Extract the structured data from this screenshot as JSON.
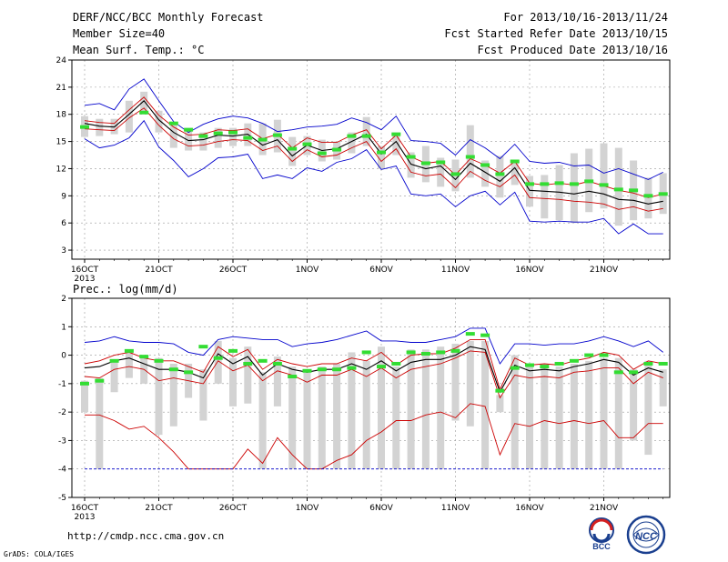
{
  "header": {
    "title": "DERF/NCC/BCC Monthly Forecast",
    "member_size": "Member Size=40",
    "variable": "Mean Surf. Temp.: °C",
    "for_period": "For 2013/10/16-2013/11/24",
    "fcst_started": "Fcst Started Refer Date 2013/10/15",
    "fcst_produced": "Fcst Produced Date 2013/10/16"
  },
  "footer": {
    "url": "http://cmdp.ncc.cma.gov.cn",
    "credit": "GrADS: COLA/IGES",
    "logo_left_text": "BCC",
    "logo_right_text": "NCC"
  },
  "colors": {
    "envelope": "#0000cc",
    "spread": "#cc0000",
    "mean": "#000000",
    "box": "#d3d3d3",
    "obs": "#33dd33",
    "floor": "#0000cc"
  },
  "chart_data": [
    {
      "type": "line",
      "ylabel": "Mean Surf. Temp.: °C",
      "ylim": [
        2,
        24
      ],
      "yticks": [
        3,
        6,
        9,
        12,
        15,
        18,
        21,
        24
      ],
      "x": [
        "16OCT",
        "17OCT",
        "18OCT",
        "19OCT",
        "20OCT",
        "21OCT",
        "22OCT",
        "23OCT",
        "24OCT",
        "25OCT",
        "26OCT",
        "27OCT",
        "28OCT",
        "29OCT",
        "30OCT",
        "31OCT",
        "1NOV",
        "2NOV",
        "3NOV",
        "4NOV",
        "5NOV",
        "6NOV",
        "7NOV",
        "8NOV",
        "9NOV",
        "10NOV",
        "11NOV",
        "12NOV",
        "13NOV",
        "14NOV",
        "15NOV",
        "16NOV",
        "17NOV",
        "18NOV",
        "19NOV",
        "20NOV",
        "21NOV",
        "22NOV",
        "23NOV",
        "24NOV"
      ],
      "xtick_labels": [
        "16OCT",
        "21OCT",
        "26OCT",
        "1NOV",
        "6NOV",
        "11NOV",
        "16NOV",
        "21NOV"
      ],
      "xtick_sublabel": "2013",
      "series": [
        {
          "role": "max",
          "values": [
            19.0,
            19.2,
            18.5,
            20.8,
            21.9,
            19.5,
            17.2,
            16.0,
            16.9,
            17.5,
            17.8,
            17.6,
            17.0,
            16.1,
            16.3,
            16.6,
            16.7,
            16.9,
            17.6,
            17.1,
            16.3,
            17.8,
            15.1,
            15.0,
            14.8,
            13.5,
            15.2,
            14.3,
            13.1,
            14.7,
            12.8,
            12.6,
            12.7,
            12.3,
            12.4,
            11.5,
            12.0,
            11.4,
            10.8,
            11.6
          ]
        },
        {
          "role": "upper",
          "values": [
            17.3,
            17.1,
            17.0,
            18.5,
            19.9,
            17.9,
            16.6,
            15.7,
            15.8,
            16.3,
            16.2,
            16.4,
            15.3,
            15.8,
            14.3,
            15.4,
            14.9,
            14.9,
            15.7,
            16.3,
            14.2,
            15.7,
            13.3,
            12.6,
            12.8,
            11.3,
            13.1,
            12.4,
            11.5,
            12.8,
            10.4,
            10.2,
            10.4,
            10.2,
            10.6,
            10.1,
            9.6,
            9.3,
            8.8,
            9.2
          ]
        },
        {
          "role": "mean",
          "values": [
            17.0,
            16.7,
            16.6,
            18.0,
            19.5,
            17.4,
            16.0,
            15.1,
            15.2,
            15.7,
            15.6,
            15.8,
            14.6,
            15.2,
            13.4,
            14.6,
            14.0,
            14.2,
            15.0,
            15.8,
            13.6,
            15.0,
            12.5,
            12.0,
            12.3,
            10.8,
            12.6,
            11.6,
            10.6,
            12.1,
            9.6,
            9.5,
            9.4,
            9.2,
            9.5,
            9.2,
            8.6,
            8.5,
            8.1,
            8.4
          ]
        },
        {
          "role": "lower",
          "values": [
            16.4,
            16.3,
            16.2,
            17.6,
            18.7,
            16.8,
            15.3,
            14.5,
            14.6,
            15.0,
            15.2,
            15.1,
            14.0,
            14.5,
            12.8,
            14.1,
            13.3,
            13.5,
            14.3,
            15.0,
            12.8,
            14.2,
            11.6,
            11.2,
            11.4,
            9.9,
            11.7,
            10.7,
            10.0,
            11.3,
            8.8,
            8.7,
            8.6,
            8.4,
            8.3,
            8.1,
            7.5,
            7.8,
            7.3,
            7.6
          ]
        },
        {
          "role": "min",
          "values": [
            15.3,
            14.3,
            14.6,
            15.4,
            17.3,
            14.4,
            12.9,
            11.1,
            12.0,
            13.2,
            13.3,
            13.6,
            10.9,
            11.3,
            10.9,
            12.1,
            11.7,
            12.7,
            13.1,
            14.1,
            11.9,
            12.3,
            9.2,
            9.0,
            9.2,
            7.8,
            9.0,
            9.5,
            8.0,
            9.4,
            6.2,
            6.1,
            6.2,
            6.1,
            6.1,
            6.5,
            4.8,
            5.9,
            4.8,
            4.8
          ]
        }
      ],
      "boxes": [
        [
          15.5,
          17.8
        ],
        [
          15.6,
          17.5
        ],
        [
          15.8,
          17.5
        ],
        [
          16.0,
          19.5
        ],
        [
          18.0,
          20.5
        ],
        [
          16.0,
          18.4
        ],
        [
          14.3,
          17.0
        ],
        [
          14.0,
          16.5
        ],
        [
          14.0,
          16.0
        ],
        [
          14.3,
          16.5
        ],
        [
          14.5,
          16.5
        ],
        [
          14.5,
          17.0
        ],
        [
          13.5,
          17.0
        ],
        [
          13.8,
          17.4
        ],
        [
          12.3,
          15.5
        ],
        [
          13.5,
          15.6
        ],
        [
          12.8,
          15.2
        ],
        [
          13.0,
          15.0
        ],
        [
          13.7,
          16.0
        ],
        [
          14.5,
          17.7
        ],
        [
          12.0,
          14.5
        ],
        [
          13.5,
          16.0
        ],
        [
          11.0,
          13.8
        ],
        [
          10.5,
          14.5
        ],
        [
          10.0,
          13.2
        ],
        [
          9.5,
          13.0
        ],
        [
          11.0,
          16.8
        ],
        [
          10.0,
          12.9
        ],
        [
          8.8,
          13.4
        ],
        [
          10.2,
          12.6
        ],
        [
          7.8,
          11.2
        ],
        [
          6.5,
          11.3
        ],
        [
          6.3,
          12.4
        ],
        [
          6.0,
          13.7
        ],
        [
          7.2,
          14.2
        ],
        [
          7.6,
          14.8
        ],
        [
          5.7,
          14.3
        ],
        [
          6.3,
          12.9
        ],
        [
          6.5,
          11.0
        ],
        [
          7.0,
          11.5
        ]
      ],
      "obs": [
        16.6,
        null,
        null,
        null,
        18.2,
        null,
        17.0,
        16.3,
        15.6,
        15.9,
        16.0,
        15.4,
        15.2,
        15.7,
        14.2,
        14.7,
        13.7,
        14.1,
        15.6,
        15.6,
        13.8,
        15.8,
        13.3,
        12.6,
        12.7,
        11.4,
        13.3,
        12.4,
        11.4,
        12.8,
        10.3,
        10.3,
        10.4,
        10.3,
        10.6,
        10.2,
        9.7,
        9.6,
        9.0,
        9.2
      ]
    },
    {
      "type": "line",
      "ylabel": "Prec.: log(mm/d)",
      "ylim": [
        -5,
        2
      ],
      "yticks": [
        -5,
        -4,
        -3,
        -2,
        -1,
        0,
        1,
        2
      ],
      "x": [
        "16OCT",
        "17OCT",
        "18OCT",
        "19OCT",
        "20OCT",
        "21OCT",
        "22OCT",
        "23OCT",
        "24OCT",
        "25OCT",
        "26OCT",
        "27OCT",
        "28OCT",
        "29OCT",
        "30OCT",
        "31OCT",
        "1NOV",
        "2NOV",
        "3NOV",
        "4NOV",
        "5NOV",
        "6NOV",
        "7NOV",
        "8NOV",
        "9NOV",
        "10NOV",
        "11NOV",
        "12NOV",
        "13NOV",
        "14NOV",
        "15NOV",
        "16NOV",
        "17NOV",
        "18NOV",
        "19NOV",
        "20NOV",
        "21NOV",
        "22NOV",
        "23NOV",
        "24NOV"
      ],
      "xtick_labels": [
        "16OCT",
        "21OCT",
        "26OCT",
        "1NOV",
        "6NOV",
        "11NOV",
        "16NOV",
        "21NOV"
      ],
      "xtick_sublabel": "2013",
      "series": [
        {
          "role": "max",
          "values": [
            0.45,
            0.5,
            0.65,
            0.5,
            0.45,
            0.45,
            0.4,
            0.1,
            0.0,
            0.55,
            0.65,
            0.6,
            0.55,
            0.55,
            0.3,
            0.4,
            0.45,
            0.55,
            0.7,
            0.85,
            0.5,
            0.5,
            0.45,
            0.45,
            0.55,
            0.65,
            0.95,
            0.95,
            -0.3,
            0.4,
            0.4,
            0.35,
            0.4,
            0.4,
            0.5,
            0.65,
            0.5,
            0.3,
            0.5,
            0.1
          ]
        },
        {
          "role": "upper",
          "values": [
            -0.3,
            -0.2,
            0.0,
            0.1,
            -0.1,
            -0.2,
            -0.2,
            -0.4,
            -0.6,
            0.3,
            -0.05,
            0.2,
            -0.5,
            -0.15,
            -0.3,
            -0.4,
            -0.3,
            -0.3,
            -0.1,
            -0.2,
            0.1,
            -0.35,
            0.0,
            0.05,
            0.05,
            0.25,
            0.55,
            0.55,
            -1.2,
            -0.1,
            -0.35,
            -0.3,
            -0.35,
            -0.2,
            -0.1,
            0.1,
            0.0,
            -0.5,
            -0.2,
            -0.3
          ]
        },
        {
          "role": "mean",
          "values": [
            -0.45,
            -0.4,
            -0.2,
            -0.1,
            -0.3,
            -0.5,
            -0.5,
            -0.6,
            -0.8,
            0.05,
            -0.3,
            -0.05,
            -0.7,
            -0.3,
            -0.5,
            -0.6,
            -0.5,
            -0.5,
            -0.3,
            -0.5,
            -0.2,
            -0.55,
            -0.25,
            -0.15,
            -0.15,
            0.0,
            0.3,
            0.2,
            -1.3,
            -0.35,
            -0.55,
            -0.5,
            -0.55,
            -0.4,
            -0.3,
            -0.15,
            -0.25,
            -0.7,
            -0.45,
            -0.6
          ]
        },
        {
          "role": "lower",
          "values": [
            -0.75,
            -0.8,
            -0.5,
            -0.4,
            -0.5,
            -0.9,
            -0.8,
            -0.9,
            -1.0,
            -0.2,
            -0.55,
            -0.35,
            -0.9,
            -0.55,
            -0.7,
            -0.95,
            -0.7,
            -0.7,
            -0.5,
            -0.75,
            -0.45,
            -0.8,
            -0.5,
            -0.4,
            -0.3,
            -0.1,
            0.15,
            0.1,
            -1.5,
            -0.7,
            -0.8,
            -0.75,
            -0.8,
            -0.6,
            -0.55,
            -0.45,
            -0.45,
            -1.0,
            -0.6,
            -0.8
          ]
        },
        {
          "role": "min",
          "values": [
            -2.1,
            -2.1,
            -2.3,
            -2.6,
            -2.5,
            -2.9,
            -3.4,
            -4.0,
            -4.0,
            -4.0,
            -4.0,
            -3.3,
            -3.8,
            -2.9,
            -3.5,
            -4.0,
            -4.0,
            -3.7,
            -3.5,
            -3.0,
            -2.7,
            -2.3,
            -2.3,
            -2.1,
            -2.0,
            -2.2,
            -1.7,
            -1.8,
            -3.5,
            -2.4,
            -2.5,
            -2.3,
            -2.4,
            -2.3,
            -2.4,
            -2.3,
            -2.9,
            -2.9,
            -2.4,
            -2.4
          ]
        },
        {
          "role": "floor",
          "values": [
            -4,
            -4,
            -4,
            -4,
            -4,
            -4,
            -4,
            -4,
            -4,
            -4,
            -4,
            -4,
            -4,
            -4,
            -4,
            -4,
            -4,
            -4,
            -4,
            -4,
            -4,
            -4,
            -4,
            -4,
            -4,
            -4,
            -4,
            -4,
            -4,
            -4,
            -4,
            -4,
            -4,
            -4,
            -4,
            -4,
            -4,
            -4,
            -4,
            -4
          ]
        }
      ],
      "boxes": [
        [
          -2.0,
          -0.9
        ],
        [
          -4.0,
          -0.8
        ],
        [
          -1.3,
          -0.2
        ],
        [
          -0.8,
          0.2
        ],
        [
          -1.0,
          -0.1
        ],
        [
          -2.8,
          -0.1
        ],
        [
          -2.5,
          -0.3
        ],
        [
          -1.5,
          -0.3
        ],
        [
          -2.3,
          -0.5
        ],
        [
          -1.0,
          0.5
        ],
        [
          -1.8,
          -0.1
        ],
        [
          -1.7,
          0.3
        ],
        [
          -4.0,
          -0.6
        ],
        [
          -1.8,
          -0.05
        ],
        [
          -4.0,
          -0.4
        ],
        [
          -4.0,
          -0.5
        ],
        [
          -4.0,
          -0.4
        ],
        [
          -4.0,
          -0.3
        ],
        [
          -4.0,
          0.1
        ],
        [
          -4.0,
          -0.2
        ],
        [
          -4.0,
          0.3
        ],
        [
          -4.0,
          -0.4
        ],
        [
          -4.0,
          0.2
        ],
        [
          -4.0,
          0.2
        ],
        [
          -4.0,
          0.3
        ],
        [
          -2.3,
          0.4
        ],
        [
          -2.5,
          0.5
        ],
        [
          -4.0,
          0.5
        ],
        [
          -2.0,
          -1.4
        ],
        [
          -4.0,
          0.0
        ],
        [
          -4.0,
          -0.3
        ],
        [
          -4.0,
          -0.3
        ],
        [
          -4.0,
          -0.4
        ],
        [
          -4.0,
          -0.3
        ],
        [
          -4.0,
          -0.2
        ],
        [
          -4.0,
          -0.1
        ],
        [
          -4.0,
          -0.1
        ],
        [
          -3.0,
          -0.5
        ],
        [
          -3.5,
          -0.2
        ],
        [
          -1.8,
          -0.5
        ]
      ],
      "obs": [
        -1.0,
        -0.9,
        -0.2,
        0.15,
        -0.05,
        -0.2,
        -0.5,
        -0.6,
        0.3,
        -0.1,
        0.15,
        -0.3,
        -0.2,
        -0.3,
        -0.75,
        -0.55,
        -0.5,
        -0.5,
        -0.45,
        0.1,
        -0.4,
        -0.3,
        0.1,
        0.05,
        0.1,
        0.15,
        0.75,
        0.7,
        -1.25,
        -0.45,
        -0.35,
        -0.4,
        -0.3,
        -0.2,
        0.0,
        0.0,
        -0.6,
        -0.6,
        -0.3,
        -0.3
      ]
    }
  ]
}
